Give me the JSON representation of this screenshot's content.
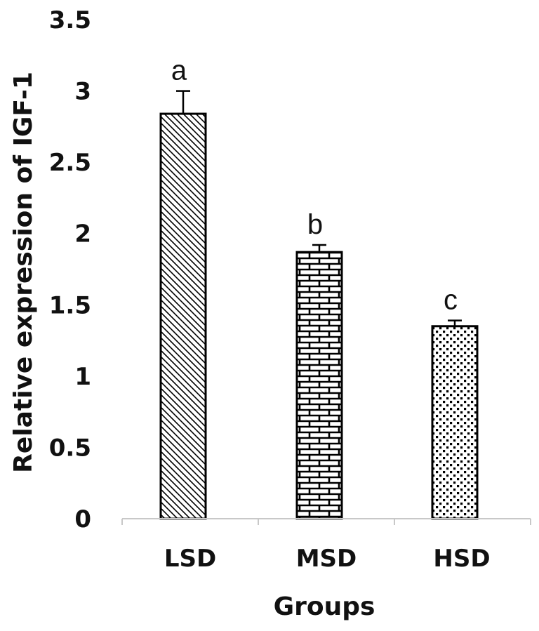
{
  "chart_data": {
    "type": "bar",
    "categories": [
      "LSD",
      "MSD",
      "HSD"
    ],
    "values": [
      2.84,
      1.87,
      1.35
    ],
    "errors": [
      0.16,
      0.05,
      0.04
    ],
    "significance_labels": [
      "a",
      "b",
      "c"
    ],
    "patterns": [
      "diagonal-hatch",
      "brick",
      "dots"
    ],
    "title": "",
    "xlabel": "Groups",
    "ylabel": "Relative expression of IGF-1",
    "ylim": [
      0,
      3.5
    ],
    "yticks": [
      "0",
      "0.5",
      "1",
      "1.5",
      "2",
      "2.5",
      "3",
      "3.5"
    ],
    "grid": false,
    "colors": {
      "bar_stroke": "#000000",
      "axis": "#c8c8c8",
      "fill": "#ffffff"
    }
  }
}
